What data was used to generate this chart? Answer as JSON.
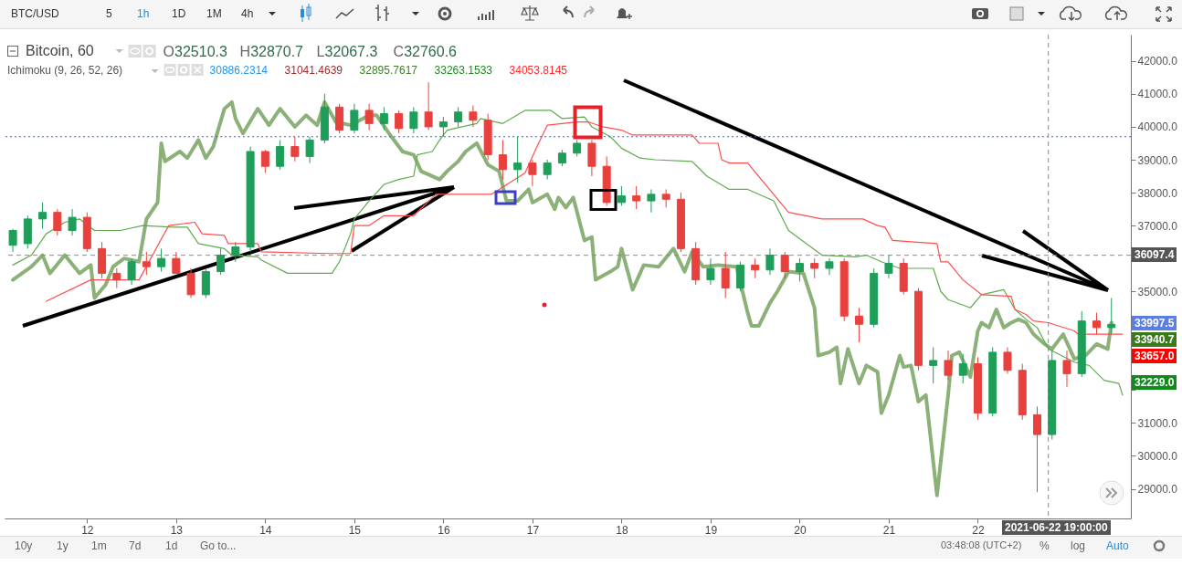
{
  "chart_data": {
    "type": "candlestick",
    "title": "Bitcoin, 60",
    "subtitle": "Ichimoku (9, 26, 52, 26)",
    "x": [
      "2021-06-11T04:00",
      "2021-06-11T08:00",
      "2021-06-11T12:00",
      "2021-06-11T16:00",
      "2021-06-11T20:00",
      "2021-06-12T00:00",
      "2021-06-12T04:00",
      "2021-06-12T08:00",
      "2021-06-12T12:00",
      "2021-06-12T16:00",
      "2021-06-12T20:00",
      "2021-06-13T00:00",
      "2021-06-13T04:00",
      "2021-06-13T08:00",
      "2021-06-13T12:00",
      "2021-06-13T16:00",
      "2021-06-13T20:00",
      "2021-06-14T00:00",
      "2021-06-14T04:00",
      "2021-06-14T08:00",
      "2021-06-14T12:00",
      "2021-06-14T16:00",
      "2021-06-14T20:00",
      "2021-06-15T00:00",
      "2021-06-15T04:00",
      "2021-06-15T08:00",
      "2021-06-15T12:00",
      "2021-06-15T16:00",
      "2021-06-15T20:00",
      "2021-06-16T00:00",
      "2021-06-16T04:00",
      "2021-06-16T08:00",
      "2021-06-16T12:00",
      "2021-06-16T16:00",
      "2021-06-16T20:00",
      "2021-06-17T00:00",
      "2021-06-17T04:00",
      "2021-06-17T08:00",
      "2021-06-17T12:00",
      "2021-06-17T16:00",
      "2021-06-17T20:00",
      "2021-06-18T00:00",
      "2021-06-18T04:00",
      "2021-06-18T08:00",
      "2021-06-18T12:00",
      "2021-06-18T16:00",
      "2021-06-18T20:00",
      "2021-06-19T00:00",
      "2021-06-19T04:00",
      "2021-06-19T08:00",
      "2021-06-19T12:00",
      "2021-06-19T16:00",
      "2021-06-19T20:00",
      "2021-06-20T00:00",
      "2021-06-20T04:00",
      "2021-06-20T08:00",
      "2021-06-20T12:00",
      "2021-06-20T16:00",
      "2021-06-20T20:00",
      "2021-06-21T00:00",
      "2021-06-21T04:00",
      "2021-06-21T08:00",
      "2021-06-21T12:00",
      "2021-06-21T16:00",
      "2021-06-21T20:00",
      "2021-06-22T00:00",
      "2021-06-22T04:00",
      "2021-06-22T08:00",
      "2021-06-22T12:00",
      "2021-06-22T16:00",
      "2021-06-22T20:00",
      "2021-06-23T00:00",
      "2021-06-23T04:00",
      "2021-06-23T08:00",
      "2021-06-23T12:00"
    ],
    "ohlc": [
      [
        36400,
        36900,
        36200,
        36850
      ],
      [
        36450,
        37300,
        36300,
        37200
      ],
      [
        37200,
        37700,
        36900,
        37400
      ],
      [
        37400,
        37500,
        36700,
        36850
      ],
      [
        36850,
        37500,
        36700,
        37250
      ],
      [
        37250,
        37400,
        36200,
        36300
      ],
      [
        36300,
        36500,
        35400,
        35550
      ],
      [
        35550,
        35700,
        35100,
        35350
      ],
      [
        35350,
        36000,
        35200,
        35900
      ],
      [
        35900,
        36200,
        35500,
        35750
      ],
      [
        35750,
        36300,
        35600,
        36000
      ],
      [
        36000,
        36200,
        35550,
        35550
      ],
      [
        35550,
        35700,
        34800,
        34900
      ],
      [
        34900,
        35700,
        34800,
        35600
      ],
      [
        35600,
        36300,
        35500,
        36100
      ],
      [
        36100,
        36500,
        35900,
        36350
      ],
      [
        36350,
        39400,
        36200,
        39250
      ],
      [
        39250,
        39300,
        38600,
        38800
      ],
      [
        38800,
        39600,
        38700,
        39400
      ],
      [
        39400,
        39700,
        38950,
        39100
      ],
      [
        39100,
        39700,
        38900,
        39600
      ],
      [
        39600,
        41000,
        39500,
        40600
      ],
      [
        40600,
        40700,
        39800,
        39900
      ],
      [
        39900,
        40700,
        39800,
        40500
      ],
      [
        40500,
        40700,
        39900,
        40100
      ],
      [
        40100,
        40600,
        39900,
        40400
      ],
      [
        40400,
        40500,
        39800,
        39950
      ],
      [
        39950,
        40600,
        39800,
        40450
      ],
      [
        40450,
        41350,
        39900,
        40000
      ],
      [
        40000,
        40300,
        39700,
        40150
      ],
      [
        40150,
        40600,
        40000,
        40450
      ],
      [
        40450,
        40650,
        40000,
        40200
      ],
      [
        40200,
        40400,
        39000,
        39150
      ],
      [
        39150,
        39600,
        38400,
        38700
      ],
      [
        38700,
        39700,
        38300,
        38900
      ],
      [
        38900,
        39000,
        38200,
        38550
      ],
      [
        38550,
        39000,
        38400,
        38900
      ],
      [
        38900,
        39300,
        38800,
        39200
      ],
      [
        39200,
        39600,
        39100,
        39500
      ],
      [
        39500,
        39600,
        38500,
        38800
      ],
      [
        38800,
        39100,
        37600,
        37700
      ],
      [
        37700,
        38200,
        37600,
        37900
      ],
      [
        37900,
        38200,
        37500,
        37750
      ],
      [
        37750,
        38100,
        37400,
        37950
      ],
      [
        37950,
        38100,
        37550,
        37800
      ],
      [
        37800,
        38000,
        36200,
        36300
      ],
      [
        36300,
        36500,
        35200,
        35350
      ],
      [
        35350,
        36000,
        35200,
        35700
      ],
      [
        35700,
        36200,
        34800,
        35100
      ],
      [
        35100,
        35900,
        35000,
        35800
      ],
      [
        35800,
        36000,
        35400,
        35650
      ],
      [
        35650,
        36300,
        35500,
        36100
      ],
      [
        36100,
        36200,
        35400,
        35600
      ],
      [
        35600,
        36000,
        35300,
        35850
      ],
      [
        35850,
        36000,
        35400,
        35700
      ],
      [
        35700,
        36000,
        35500,
        35900
      ],
      [
        35900,
        36000,
        34100,
        34250
      ],
      [
        34250,
        34500,
        33450,
        34000
      ],
      [
        34000,
        35700,
        33900,
        35550
      ],
      [
        35550,
        36100,
        35400,
        35850
      ],
      [
        35850,
        36000,
        34900,
        35000
      ],
      [
        35000,
        35100,
        32600,
        32750
      ],
      [
        32750,
        33300,
        32200,
        32900
      ],
      [
        32900,
        33200,
        32300,
        32450
      ],
      [
        32450,
        33100,
        32200,
        32800
      ],
      [
        32800,
        33000,
        31100,
        31300
      ],
      [
        31300,
        33300,
        31200,
        33150
      ],
      [
        33150,
        33300,
        32500,
        32600
      ],
      [
        32600,
        32800,
        31100,
        31250
      ],
      [
        31250,
        31500,
        28900,
        30650
      ],
      [
        30650,
        33200,
        30500,
        32900
      ],
      [
        32900,
        33200,
        32100,
        32500
      ],
      [
        32500,
        34400,
        32400,
        34100
      ],
      [
        34100,
        34350,
        33700,
        33900
      ],
      [
        33900,
        34800,
        33700,
        34000
      ]
    ],
    "colors": [
      "#1f9e5a",
      "#1f9e5a",
      "#1f9e5a",
      "#e8413d",
      "#1f9e5a",
      "#e8413d",
      "#e8413d",
      "#e8413d",
      "#1f9e5a",
      "#e8413d",
      "#1f9e5a",
      "#e8413d",
      "#e8413d",
      "#1f9e5a",
      "#1f9e5a",
      "#1f9e5a",
      "#1f9e5a",
      "#e8413d",
      "#1f9e5a",
      "#e8413d",
      "#1f9e5a",
      "#1f9e5a",
      "#e8413d",
      "#1f9e5a",
      "#e8413d",
      "#1f9e5a",
      "#e8413d",
      "#1f9e5a",
      "#e8413d",
      "#1f9e5a",
      "#1f9e5a",
      "#e8413d",
      "#e8413d",
      "#e8413d",
      "#1f9e5a",
      "#e8413d",
      "#1f9e5a",
      "#1f9e5a",
      "#1f9e5a",
      "#e8413d",
      "#e8413d",
      "#1f9e5a",
      "#e8413d",
      "#1f9e5a",
      "#e8413d",
      "#e8413d",
      "#e8413d",
      "#1f9e5a",
      "#e8413d",
      "#1f9e5a",
      "#e8413d",
      "#1f9e5a",
      "#e8413d",
      "#1f9e5a",
      "#e8413d",
      "#1f9e5a",
      "#e8413d",
      "#e8413d",
      "#1f9e5a",
      "#1f9e5a",
      "#e8413d",
      "#e8413d",
      "#1f9e5a",
      "#e8413d",
      "#1f9e5a",
      "#e8413d",
      "#1f9e5a",
      "#e8413d",
      "#e8413d",
      "#e8413d",
      "#1f9e5a",
      "#e8413d",
      "#1f9e5a",
      "#e8413d",
      "#1f9e5a"
    ],
    "series": [
      {
        "type": "line",
        "color": "#77a360",
        "x": [
          "2021-06-11T04:00",
          "2021-06-11T09:00",
          "2021-06-11T12:00",
          "2021-06-11T14:00",
          "2021-06-11T18:00",
          "2021-06-11T22:00",
          "2021-06-12T01:00",
          "2021-06-12T02:00",
          "2021-06-12T05:00",
          "2021-06-12T07:00",
          "2021-06-12T10:00",
          "2021-06-12T14:00",
          "2021-06-12T16:00",
          "2021-06-12T19:00",
          "2021-06-12T20:00",
          "2021-06-12T21:00",
          "2021-06-13T01:00",
          "2021-06-13T03:00",
          "2021-06-13T06:00",
          "2021-06-13T08:00",
          "2021-06-13T10:00",
          "2021-06-13T13:00",
          "2021-06-13T15:00",
          "2021-06-13T16:00",
          "2021-06-13T18:00",
          "2021-06-13T22:00",
          "2021-06-14T01:00",
          "2021-06-14T04:00",
          "2021-06-14T08:00",
          "2021-06-14T11:00",
          "2021-06-14T14:00",
          "2021-06-14T16:00",
          "2021-06-14T19:00",
          "2021-06-14T23:00",
          "2021-06-15T04:00",
          "2021-06-15T06:00",
          "2021-06-15T10:00",
          "2021-06-15T13:00",
          "2021-06-15T16:00",
          "2021-06-15T18:00",
          "2021-06-15T23:00",
          "2021-06-16T01:00",
          "2021-06-16T04:00",
          "2021-06-16T06:00",
          "2021-06-16T09:00",
          "2021-06-16T12:00",
          "2021-06-16T15:00",
          "2021-06-16T17:00",
          "2021-06-16T20:00",
          "2021-06-16T23:00",
          "2021-06-17T00:00",
          "2021-06-17T04:00",
          "2021-06-17T06:00",
          "2021-06-17T07:00",
          "2021-06-17T09:00",
          "2021-06-17T11:00",
          "2021-06-17T14:00",
          "2021-06-17T16:00",
          "2021-06-17T17:00",
          "2021-06-17T21:00",
          "2021-06-17T23:00",
          "2021-06-18T00:00",
          "2021-06-18T03:00",
          "2021-06-18T06:00",
          "2021-06-18T10:00",
          "2021-06-18T14:00",
          "2021-06-18T17:00",
          "2021-06-18T19:00",
          "2021-06-18T22:00",
          "2021-06-19T02:00",
          "2021-06-19T04:00",
          "2021-06-19T07:00",
          "2021-06-19T10:00",
          "2021-06-19T11:00",
          "2021-06-19T13:00",
          "2021-06-19T16:00",
          "2021-06-19T18:00",
          "2021-06-19T20:00",
          "2021-06-19T21:00",
          "2021-06-20T01:00",
          "2021-06-20T04:00",
          "2021-06-20T05:00",
          "2021-06-20T08:00",
          "2021-06-20T10:00",
          "2021-06-20T11:00",
          "2021-06-20T13:00",
          "2021-06-20T16:00",
          "2021-06-20T18:00",
          "2021-06-20T21:00",
          "2021-06-20T22:00",
          "2021-06-21T00:00",
          "2021-06-21T03:00",
          "2021-06-21T04:00",
          "2021-06-21T06:00",
          "2021-06-21T08:00",
          "2021-06-21T10:00",
          "2021-06-21T13:00",
          "2021-06-21T16:00",
          "2021-06-21T17:00",
          "2021-06-21T19:00",
          "2021-06-21T22:00",
          "2021-06-22T00:00",
          "2021-06-22T01:00",
          "2021-06-22T03:00",
          "2021-06-22T05:00",
          "2021-06-22T07:00",
          "2021-06-22T09:00",
          "2021-06-22T11:00",
          "2021-06-22T13:00",
          "2021-06-22T15:00",
          "2021-06-22T18:00",
          "2021-06-22T20:00",
          "2021-06-22T23:00",
          "2021-06-23T02:00",
          "2021-06-23T05:00",
          "2021-06-23T08:00",
          "2021-06-23T11:00",
          "2021-06-23T12:00"
        ],
        "values": [
          35350,
          35750,
          36100,
          35550,
          36100,
          35550,
          35800,
          34800,
          35200,
          35750,
          36000,
          35900,
          37200,
          37700,
          39500,
          38950,
          39250,
          39050,
          39600,
          39050,
          39400,
          40550,
          40750,
          40250,
          39800,
          40550,
          40050,
          40550,
          40000,
          40350,
          40050,
          40750,
          40150,
          40050,
          40350,
          40350,
          39700,
          39250,
          39150,
          38650,
          38400,
          38650,
          38950,
          39250,
          39500,
          38850,
          38650,
          37750,
          37750,
          38100,
          37700,
          37950,
          37500,
          37850,
          37550,
          37850,
          36550,
          36650,
          35350,
          35600,
          35750,
          36300,
          35050,
          35800,
          35750,
          36300,
          35600,
          36200,
          35750,
          35800,
          null,
          35750,
          34350,
          33950,
          33950,
          34650,
          35000,
          null,
          35600,
          35550,
          34500,
          33050,
          33150,
          33300,
          32200,
          33250,
          32200,
          32750,
          32550,
          31300,
          31850,
          33050,
          32700,
          32750,
          31650,
          31850,
          28800,
          31850,
          33050,
          33150,
          32400,
          33800,
          34050,
          33900,
          34450,
          33900,
          34050,
          34150,
          34050,
          33700,
          33400,
          33250,
          33700,
          32950,
          33050,
          33400,
          33250,
          34050
        ]
      },
      {
        "type": "line",
        "color": "#5faa4e",
        "x": [
          "2021-06-11T04:00",
          "2021-06-11T09:00",
          "2021-06-11T13:00",
          "2021-06-11T18:00",
          "2021-06-11T22:00",
          "2021-06-12T02:00",
          "2021-06-12T09:00",
          "2021-06-12T15:00",
          "2021-06-12T23:00",
          "2021-06-13T03:00",
          "2021-06-13T06:00",
          "2021-06-13T13:00",
          "2021-06-13T15:00",
          "2021-06-13T22:00",
          "2021-06-13T23:00",
          "2021-06-14T06:00",
          "2021-06-14T18:00",
          "2021-06-14T20:00",
          "2021-06-14T23:00",
          "2021-06-15T00:00",
          "2021-06-15T04:00",
          "2021-06-15T08:00",
          "2021-06-15T12:00",
          "2021-06-15T16:00",
          "2021-06-15T17:00",
          "2021-06-15T21:00",
          "2021-06-15T23:00",
          "2021-06-16T01:00",
          "2021-06-16T05:00",
          "2021-06-16T09:00",
          "2021-06-16T10:00",
          "2021-06-16T16:00",
          "2021-06-16T22:00",
          "2021-06-17T05:00",
          "2021-06-17T08:00",
          "2021-06-17T14:00",
          "2021-06-17T16:00",
          "2021-06-17T21:00",
          "2021-06-18T00:00",
          "2021-06-18T05:00",
          "2021-06-18T09:00",
          "2021-06-18T19:00",
          "2021-06-18T23:00",
          "2021-06-19T05:00",
          "2021-06-19T10:00",
          "2021-06-19T17:00",
          "2021-06-19T21:00",
          "2021-06-20T03:00",
          "2021-06-20T06:00",
          "2021-06-20T15:00",
          "2021-06-20T18:00",
          "2021-06-20T22:00",
          "2021-06-21T03:00",
          "2021-06-21T12:00",
          "2021-06-21T14:00",
          "2021-06-21T16:00",
          "2021-06-21T22:00",
          "2021-06-22T01:00",
          "2021-06-22T07:00",
          "2021-06-22T10:00",
          "2021-06-22T13:00",
          "2021-06-22T16:00",
          "2021-06-22T19:00",
          "2021-06-23T02:00",
          "2021-06-23T06:00",
          "2021-06-23T10:00",
          "2021-06-23T14:00",
          "2021-06-23T15:00"
        ],
        "values": [
          35800,
          36100,
          36750,
          37100,
          37200,
          36850,
          36850,
          37000,
          36950,
          36950,
          36450,
          36300,
          36100,
          36050,
          35950,
          35550,
          35550,
          35900,
          36750,
          37200,
          37750,
          38250,
          38400,
          38500,
          39150,
          39250,
          39600,
          39900,
          40000,
          40100,
          40250,
          40100,
          40500,
          40500,
          40250,
          40300,
          40000,
          39700,
          39350,
          39050,
          39000,
          38950,
          38500,
          38100,
          38100,
          37750,
          36850,
          36350,
          36100,
          36050,
          36100,
          35900,
          35700,
          35700,
          35000,
          34750,
          34500,
          34900,
          35050,
          34450,
          34150,
          33900,
          33250,
          32850,
          32750,
          32300,
          32200,
          31850
        ]
      },
      {
        "type": "line",
        "color": "#ff4d4d",
        "x": [
          "2021-06-11T13:00",
          "2021-06-12T01:00",
          "2021-06-12T14:00",
          "2021-06-12T22:00",
          "2021-06-13T05:00",
          "2021-06-13T07:00",
          "2021-06-13T13:00",
          "2021-06-13T14:00",
          "2021-06-13T22:00",
          "2021-06-13T23:00",
          "2021-06-14T17:00",
          "2021-06-14T23:00",
          "2021-06-15T00:00",
          "2021-06-15T04:00",
          "2021-06-15T08:00",
          "2021-06-15T16:00",
          "2021-06-15T22:00",
          "2021-06-16T13:00",
          "2021-06-16T22:00",
          "2021-06-17T01:00",
          "2021-06-17T04:00",
          "2021-06-17T12:00",
          "2021-06-17T15:00",
          "2021-06-17T19:00",
          "2021-06-18T00:00",
          "2021-06-18T03:00",
          "2021-06-18T19:00",
          "2021-06-18T21:00",
          "2021-06-19T02:00",
          "2021-06-19T03:00",
          "2021-06-19T05:00",
          "2021-06-19T10:00",
          "2021-06-19T21:00",
          "2021-06-20T06:00",
          "2021-06-20T17:00",
          "2021-06-20T21:00",
          "2021-06-20T23:00",
          "2021-06-21T01:00",
          "2021-06-21T13:00",
          "2021-06-21T14:00",
          "2021-06-21T16:00",
          "2021-06-21T20:00",
          "2021-06-22T01:00",
          "2021-06-22T09:00",
          "2021-06-22T10:00",
          "2021-06-22T13:00",
          "2021-06-22T15:00",
          "2021-06-22T19:00",
          "2021-06-23T02:00",
          "2021-06-23T03:00",
          "2021-06-23T15:00"
        ],
        "values": [
          34700,
          35350,
          35350,
          37000,
          37100,
          36750,
          36700,
          36450,
          36450,
          36200,
          36150,
          36150,
          37000,
          37000,
          37300,
          37300,
          37950,
          37950,
          38600,
          39350,
          40050,
          40150,
          40150,
          40000,
          39900,
          39750,
          39750,
          39500,
          39500,
          39000,
          38900,
          38900,
          37400,
          37200,
          37200,
          37000,
          36950,
          36550,
          36450,
          35900,
          35900,
          35350,
          34900,
          34850,
          34450,
          34300,
          34100,
          34050,
          33800,
          33700,
          33700
        ]
      }
    ],
    "xlim": [
      "2021-06-11T03:00",
      "2021-06-23T16:00"
    ],
    "ylim": [
      28100,
      42800
    ],
    "xticks": [
      {
        "value": "2021-06-12",
        "label": "12"
      },
      {
        "value": "2021-06-13",
        "label": "13"
      },
      {
        "value": "2021-06-14",
        "label": "14"
      },
      {
        "value": "2021-06-15",
        "label": "15"
      },
      {
        "value": "2021-06-16",
        "label": "16"
      },
      {
        "value": "2021-06-17",
        "label": "17"
      },
      {
        "value": "2021-06-18",
        "label": "18"
      },
      {
        "value": "2021-06-19",
        "label": "19"
      },
      {
        "value": "2021-06-20",
        "label": "20"
      },
      {
        "value": "2021-06-21",
        "label": "21"
      },
      {
        "value": "2021-06-22",
        "label": "22"
      }
    ],
    "yticks": [
      {
        "value": 29000,
        "label": "29000.0"
      },
      {
        "value": 30000,
        "label": "30000.0"
      },
      {
        "value": 31000,
        "label": "31000.0"
      },
      {
        "value": 32000,
        "label": null
      },
      {
        "value": 33000,
        "label": null
      },
      {
        "value": 34000,
        "label": null
      },
      {
        "value": 35000,
        "label": "35000.0"
      },
      {
        "value": 36000,
        "label": null
      },
      {
        "value": 37000,
        "label": "37000.0"
      },
      {
        "value": 38000,
        "label": "38000.0"
      },
      {
        "value": 39000,
        "label": "39000.0"
      },
      {
        "value": 40000,
        "label": "40000.0"
      },
      {
        "value": 41000,
        "label": "41000.0"
      },
      {
        "value": 42000,
        "label": "42000.0"
      }
    ],
    "ref_lines": [
      {
        "axis": "y",
        "value": 39700,
        "color": "#2962ff",
        "line_style": "dotted"
      },
      {
        "axis": "y",
        "value": 36097.4,
        "label": "36097.4",
        "color": "#8a8a8a",
        "line_style": "dashed"
      },
      {
        "axis": "x",
        "value": "2021-06-22T19:00",
        "label": "2021-06-22 19:00:00",
        "color": "#8a8a8a",
        "line_style": "dashed"
      }
    ],
    "annotations": [
      "O32510.3",
      "H32870.7",
      "L32067.3",
      "C32760.6",
      "30886.2314",
      "31041.4639",
      "32895.7617",
      "33263.1533",
      "34053.8145",
      "33997.5",
      "33940.7",
      "33657.0",
      "32229.0",
      "BTC/USD",
      "5",
      "1h",
      "1D",
      "1M",
      "4h",
      "10y",
      "1y",
      "1m",
      "7d",
      "1d",
      "Go to...",
      "03:48:08 (UTC+2)",
      "%",
      "log",
      "Auto"
    ]
  }
}
